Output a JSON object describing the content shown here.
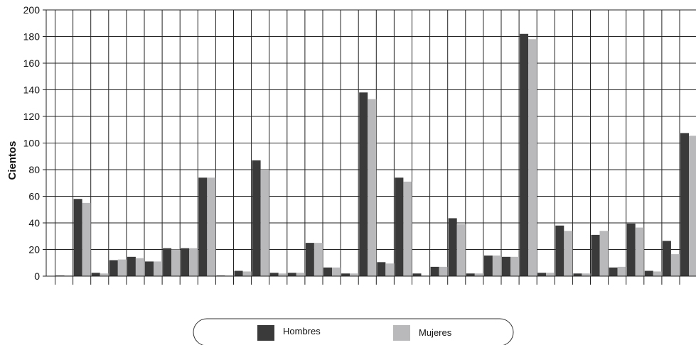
{
  "chart_data": {
    "type": "bar",
    "ylabel": "Cientos",
    "xlabel": "",
    "ylim": [
      0,
      200
    ],
    "yticks": [
      0,
      20,
      40,
      60,
      80,
      100,
      120,
      140,
      160,
      180,
      200
    ],
    "grid": true,
    "legend_position": "bottom-center",
    "categories": [
      "",
      "",
      "",
      "",
      "",
      "",
      "",
      "",
      "",
      "",
      "",
      "",
      "",
      "",
      "",
      "",
      "",
      "",
      "",
      "",
      "",
      "",
      "",
      "",
      "",
      "",
      "",
      "",
      "",
      "",
      "",
      "",
      "",
      "",
      "",
      ""
    ],
    "series": [
      {
        "name": "Hombres",
        "color": "#3a3a3a",
        "values": [
          0.5,
          58,
          2.5,
          12,
          14.5,
          11,
          21,
          21,
          74,
          0.5,
          4,
          87,
          2.5,
          2.5,
          25,
          6.5,
          2,
          138,
          10.5,
          74,
          2,
          7,
          43.5,
          2,
          15.5,
          14.5,
          182,
          2.5,
          38,
          2,
          31,
          6.5,
          39.5,
          4,
          26.5,
          107.5
        ]
      },
      {
        "name": "Mujeres",
        "color": "#b9b9bb",
        "values": [
          0.5,
          55,
          2,
          12.5,
          13.5,
          11,
          20,
          21,
          74,
          0.5,
          3.5,
          80,
          2,
          2.5,
          25,
          6.5,
          2,
          133,
          9.5,
          71,
          0.5,
          7,
          39,
          2,
          15.5,
          14.5,
          178,
          2.5,
          34,
          2,
          34,
          7,
          36.5,
          3.5,
          16.5,
          105.5
        ]
      }
    ]
  }
}
